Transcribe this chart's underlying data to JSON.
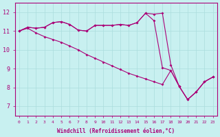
{
  "xlabel": "Windchill (Refroidissement éolien,°C)",
  "ylabel": "",
  "bg_color": "#c8f0f0",
  "line_color": "#aa0077",
  "grid_color": "#aadddd",
  "xlim": [
    0,
    23
  ],
  "ylim": [
    6.5,
    12.5
  ],
  "xticks": [
    0,
    1,
    2,
    3,
    4,
    5,
    6,
    7,
    8,
    9,
    10,
    11,
    12,
    13,
    14,
    15,
    16,
    17,
    18,
    19,
    20,
    21,
    22,
    23
  ],
  "yticks": [
    7,
    8,
    9,
    10,
    11,
    12
  ],
  "line_upper": [
    11.0,
    11.2,
    11.15,
    11.2,
    11.45,
    11.5,
    11.35,
    11.05,
    11.0,
    11.3,
    11.3,
    11.3,
    11.35,
    11.3,
    11.45,
    11.95,
    11.9,
    11.95,
    9.2,
    8.05,
    7.35,
    7.75,
    8.3,
    8.55
  ],
  "line_mid": [
    11.0,
    11.2,
    11.15,
    11.2,
    11.45,
    11.5,
    11.35,
    11.05,
    11.0,
    11.3,
    11.3,
    11.3,
    11.35,
    11.3,
    11.45,
    11.95,
    11.55,
    9.05,
    8.9,
    8.05,
    7.35,
    7.75,
    8.3,
    8.55
  ],
  "line_diag": [
    11.0,
    11.15,
    10.9,
    10.7,
    10.55,
    10.4,
    10.2,
    10.0,
    9.75,
    9.55,
    9.35,
    9.15,
    8.95,
    8.75,
    8.6,
    8.45,
    8.3,
    8.15,
    8.9,
    8.05,
    7.35,
    7.75,
    8.3,
    8.55
  ]
}
